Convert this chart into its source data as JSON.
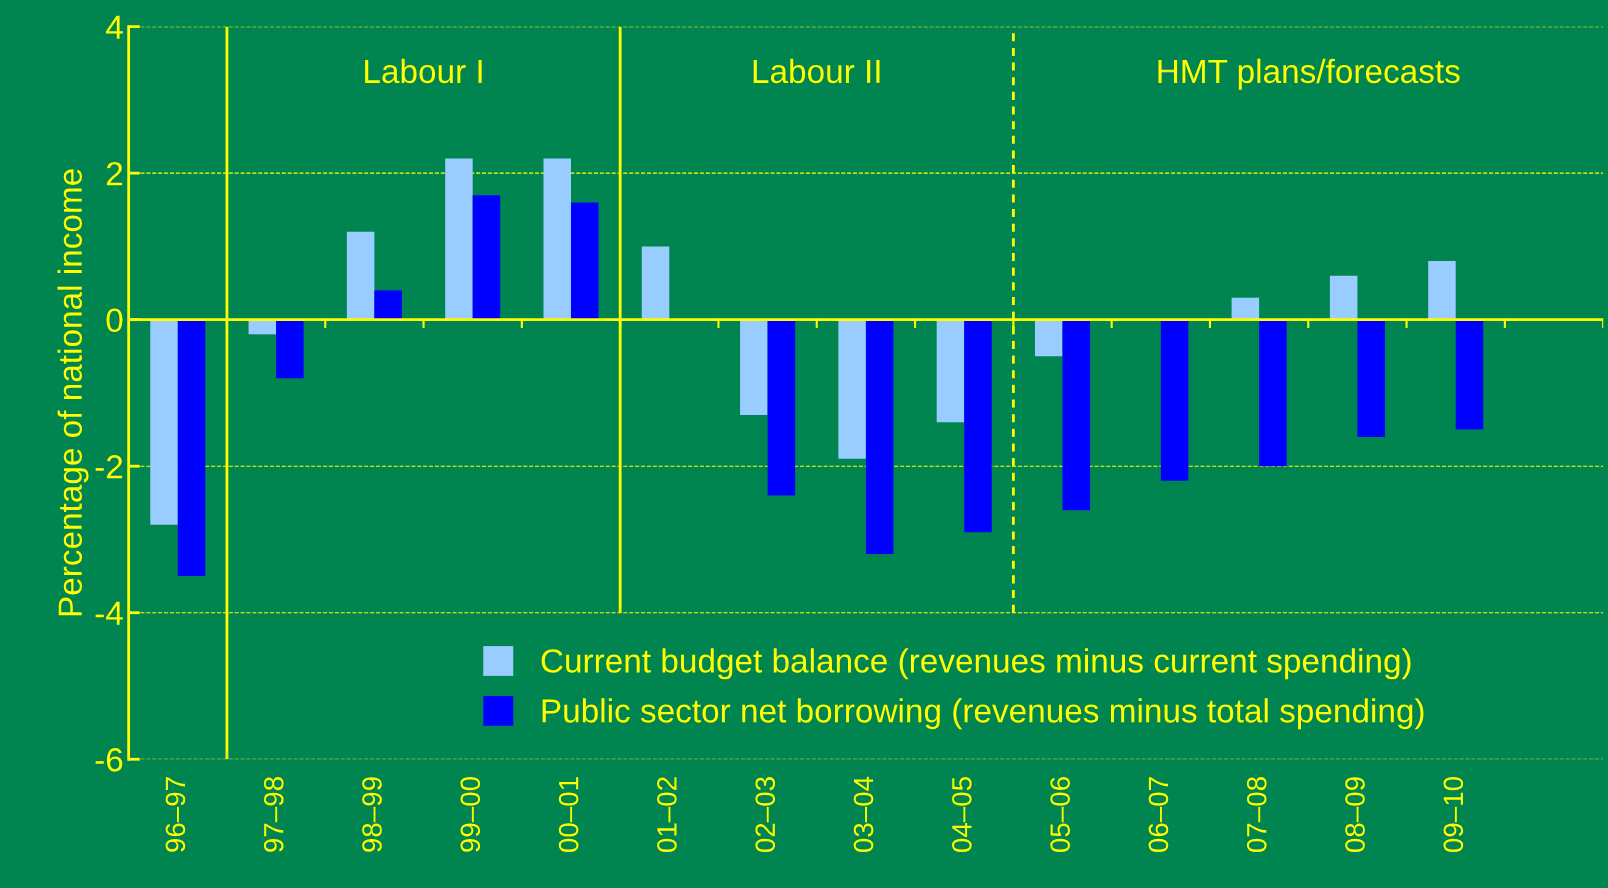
{
  "chart_data": {
    "type": "bar",
    "ylabel": "Percentage of national income",
    "categories": [
      "96–97",
      "97–98",
      "98–99",
      "99–00",
      "00–01",
      "01–02",
      "02–03",
      "03–04",
      "04–05",
      "05–06",
      "06–07",
      "07–08",
      "08–09",
      "09–10",
      null
    ],
    "series": [
      {
        "name": "Current budget balance (revenues minus current spending)",
        "color": "#99ccff",
        "values": [
          -2.8,
          -0.2,
          1.2,
          2.2,
          2.2,
          1.0,
          -1.3,
          -1.9,
          -1.4,
          -0.5,
          0,
          0.3,
          0.6,
          0.8,
          null
        ]
      },
      {
        "name": "Public sector net borrowing (revenues minus total spending)",
        "color": "#0000ff",
        "values": [
          -3.5,
          -0.8,
          0.4,
          1.7,
          1.6,
          0,
          -2.4,
          -3.2,
          -2.9,
          -2.6,
          -2.2,
          -2.0,
          -1.6,
          -1.5,
          null
        ]
      }
    ],
    "ylim": [
      -6,
      4
    ],
    "yticks": [
      -6,
      -4,
      -2,
      0,
      2,
      4
    ],
    "grid": "y",
    "legend": "bottom",
    "annotations": [
      "Labour I",
      "Labour II",
      "HMT plans/forecasts"
    ]
  }
}
